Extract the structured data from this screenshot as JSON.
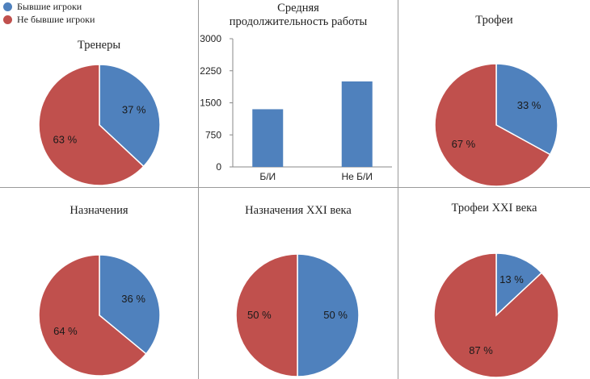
{
  "legend": {
    "items": [
      {
        "label": "Бывшие игроки",
        "color": "#4f81bd"
      },
      {
        "label": "Не бывшие игроки",
        "color": "#c0504d"
      }
    ]
  },
  "titles": {
    "coaches": "Тренеры",
    "duration_line1": "Средняя",
    "duration_line2": "продолжительность работы",
    "trophies": "Трофеи",
    "appointments": "Назначения",
    "appointments_21": "Назначения XXI века",
    "trophies_21": "Трофеи XXI века"
  },
  "colors": {
    "former": "#4f81bd",
    "nonformer": "#c0504d",
    "stroke": "#ffffff"
  },
  "chart_data": [
    {
      "type": "pie",
      "title": "Тренеры",
      "slices": [
        {
          "name": "Бывшие игроки",
          "value": 37,
          "label": "37 %"
        },
        {
          "name": "Не бывшие игроки",
          "value": 63,
          "label": "63 %"
        }
      ]
    },
    {
      "type": "bar",
      "title": "Средняя продолжительность работы",
      "categories": [
        "Б/И",
        "Не Б/И"
      ],
      "values": [
        1350,
        2000
      ],
      "ylim": [
        0,
        3000
      ],
      "yticks": [
        0,
        750,
        1500,
        2250,
        3000
      ],
      "grid": false
    },
    {
      "type": "pie",
      "title": "Трофеи",
      "slices": [
        {
          "name": "Бывшие игроки",
          "value": 33,
          "label": "33 %"
        },
        {
          "name": "Не бывшие игроки",
          "value": 67,
          "label": "67 %"
        }
      ]
    },
    {
      "type": "pie",
      "title": "Назначения",
      "slices": [
        {
          "name": "Бывшие игроки",
          "value": 36,
          "label": "36 %"
        },
        {
          "name": "Не бывшие игроки",
          "value": 64,
          "label": "64 %"
        }
      ]
    },
    {
      "type": "pie",
      "title": "Назначения XXI века",
      "slices": [
        {
          "name": "Бывшие игроки",
          "value": 50,
          "label": "50 %"
        },
        {
          "name": "Не бывшие игроки",
          "value": 50,
          "label": "50 %"
        }
      ]
    },
    {
      "type": "pie",
      "title": "Трофеи XXI века",
      "slices": [
        {
          "name": "Бывшие игроки",
          "value": 13,
          "label": "13 %"
        },
        {
          "name": "Не бывшие игроки",
          "value": 87,
          "label": "87 %"
        }
      ]
    }
  ]
}
